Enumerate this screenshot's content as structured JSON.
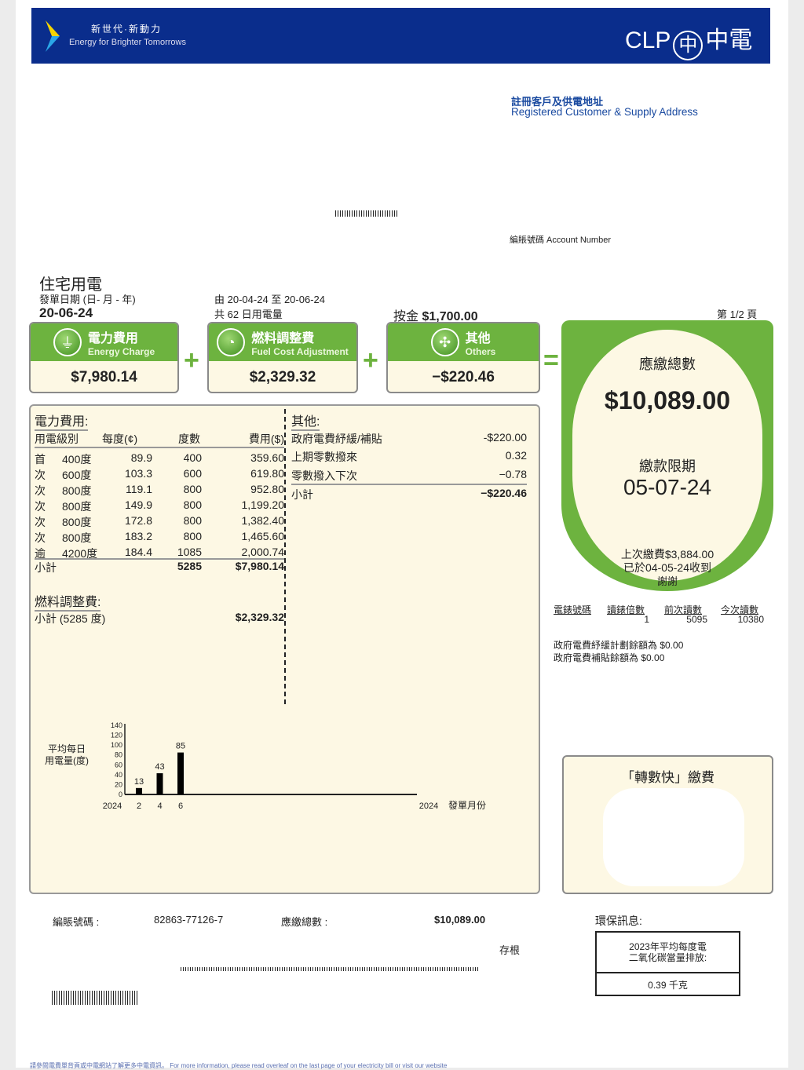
{
  "header": {
    "slogan_zh": "新世代·新動力",
    "slogan_en": "Energy for Brighter Tomorrows",
    "logo_text": "CLP",
    "logo_zh": "中電",
    "brand_color": "#0a2d8c",
    "accent_color": "#6db33f"
  },
  "address": {
    "title_zh": "註冊客戶及供電地址",
    "title_en": "Registered Customer & Supply Address",
    "account_label": "編賬號碼 Account Number"
  },
  "bill": {
    "type": "住宅用電",
    "date_label": "發單日期 (日- 月 - 年)",
    "date": "20-06-24",
    "period_from_label": "由",
    "period_from": "20-04-24",
    "period_to_label": "至",
    "period_to": "20-06-24",
    "days_prefix": "共",
    "days": "62",
    "days_suffix": "日用電量",
    "deposit_label": "按金",
    "deposit": "$1,700.00",
    "page": "第 1/2 頁"
  },
  "summary": [
    {
      "zh": "電力費用",
      "en": "Energy Charge",
      "amount": "$7,980.14",
      "icon": "plug-icon"
    },
    {
      "zh": "燃料調整費",
      "en": "Fuel Cost Adjustment",
      "amount": "$2,329.32",
      "icon": "gauge-icon"
    },
    {
      "zh": "其他",
      "en": "Others",
      "amount": "−$220.46",
      "icon": "others-icon"
    }
  ],
  "ops": {
    "plus": "+",
    "equals": "="
  },
  "total": {
    "label": "應繳總數",
    "amount": "$10,089.00",
    "due_label": "繳款限期",
    "due_date": "05-07-24",
    "last_paid": "上次繳費$3,884.00",
    "received": "已於04-05-24收到",
    "thanks": "謝謝"
  },
  "energy": {
    "title": "電力費用:",
    "headers": [
      "用電級別",
      "每度(¢)",
      "度數",
      "費用($)"
    ],
    "rows": [
      [
        "首",
        "400度",
        "89.9",
        "400",
        "359.60"
      ],
      [
        "次",
        "600度",
        "103.3",
        "600",
        "619.80"
      ],
      [
        "次",
        "800度",
        "119.1",
        "800",
        "952.80"
      ],
      [
        "次",
        "800度",
        "149.9",
        "800",
        "1,199.20"
      ],
      [
        "次",
        "800度",
        "172.8",
        "800",
        "1,382.40"
      ],
      [
        "次",
        "800度",
        "183.2",
        "800",
        "1,465.60"
      ],
      [
        "逾",
        "4200度",
        "184.4",
        "1085",
        "2,000.74"
      ]
    ],
    "subtotal_label": "小計",
    "subtotal_units": "5285",
    "subtotal": "$7,980.14"
  },
  "fuel": {
    "title": "燃料調整費:",
    "subtotal_label": "小計 (5285  度)",
    "subtotal": "$2,329.32"
  },
  "others": {
    "title": "其他:",
    "rows": [
      [
        "政府電費紓緩/補貼",
        "-$220.00"
      ],
      [
        "上期零數撥來",
        "0.32"
      ],
      [
        "零數撥入下次",
        "−0.78"
      ]
    ],
    "subtotal_label": "小計",
    "subtotal": "−$220.46"
  },
  "meter": {
    "headers": [
      "電錶號碼",
      "讀錶倍數",
      "前次讀數",
      "今次讀數"
    ],
    "values": [
      "",
      "1",
      "5095",
      "10380"
    ],
    "relief_balance": "政府電費紓緩計劃餘額為  $0.00",
    "subsidy_balance": "政府電費補貼餘額為  $0.00"
  },
  "fps": {
    "title": "「轉數快」繳費"
  },
  "chart_data": {
    "type": "bar",
    "ylabel": "平均每日\n用電量(度)",
    "xlabel": "發單月份",
    "x_start_label": "2024",
    "x_end_label": "2024",
    "categories": [
      "2",
      "4",
      "6"
    ],
    "values": [
      13,
      43,
      85
    ],
    "yticks": [
      0,
      20,
      40,
      60,
      80,
      100,
      120,
      140
    ],
    "ylim": [
      0,
      140
    ]
  },
  "stub": {
    "account_label": "編賬號碼 :",
    "account": "82863-77126-7",
    "total_label": "應繳總數 :",
    "total": "$10,089.00",
    "stub_label": "存根",
    "eco_label": "環保訊息:",
    "eco_desc": "2023年平均每度電\n二氧化碳當量排放:",
    "eco_value": "0.39 千克"
  },
  "footer": {
    "note": "請參閱電費單背頁或中電網站了解更多中電資訊。 For more information, please read overleaf on the last page of your electricity bill or visit our website"
  }
}
